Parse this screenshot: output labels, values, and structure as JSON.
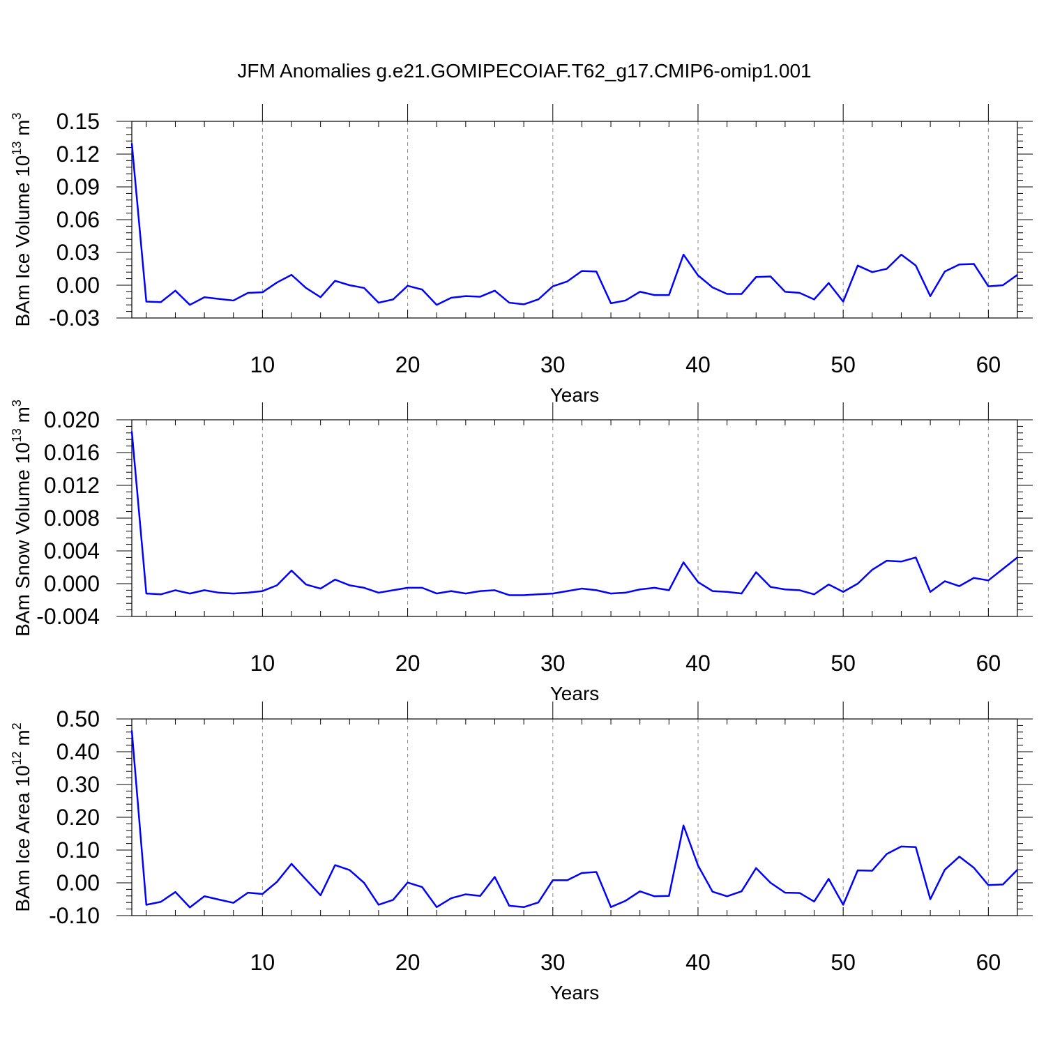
{
  "figure": {
    "title": "JFM Anomalies g.e21.GOMIPECOIAF.T62_g17.CMIP6-omip1.001"
  },
  "colors": {
    "series": "#0000ff",
    "axis": "#000000",
    "grid": "#888888",
    "background": "#ffffff"
  },
  "chart_data": [
    {
      "type": "line",
      "ylabel_main": "BAm Ice Volume 10",
      "ylabel_exp": "13",
      "ylabel_unit": " m",
      "ylabel_unit_exp": "3",
      "xlabel": "Years",
      "xlim": [
        1,
        62
      ],
      "ylim": [
        -0.03,
        0.15
      ],
      "yticks": [
        -0.03,
        0.0,
        0.03,
        0.06,
        0.09,
        0.12,
        0.15
      ],
      "ytick_labels": [
        "-0.03",
        "0.00",
        "0.03",
        "0.06",
        "0.09",
        "0.12",
        "0.15"
      ],
      "xticks": [
        10,
        20,
        30,
        40,
        50,
        60
      ],
      "xtick_labels": [
        "10",
        "20",
        "30",
        "40",
        "50",
        "60"
      ],
      "grid": "vertical dashed at major x ticks",
      "values": [
        0.13,
        -0.015,
        -0.0155,
        -0.005,
        -0.018,
        -0.011,
        -0.0125,
        -0.014,
        -0.007,
        -0.0065,
        0.0025,
        0.0095,
        -0.0025,
        -0.011,
        0.004,
        0.0,
        -0.0025,
        -0.016,
        -0.013,
        -0.0005,
        -0.004,
        -0.018,
        -0.0115,
        -0.01,
        -0.0105,
        -0.005,
        -0.016,
        -0.0175,
        -0.013,
        -0.001,
        0.0035,
        0.013,
        0.0125,
        -0.0165,
        -0.014,
        -0.006,
        -0.009,
        -0.009,
        0.028,
        0.009,
        -0.002,
        -0.008,
        -0.008,
        0.0075,
        0.008,
        -0.006,
        -0.007,
        -0.013,
        0.002,
        -0.015,
        0.018,
        0.012,
        0.015,
        0.028,
        0.018,
        -0.01,
        0.0125,
        0.019,
        0.0195,
        -0.001,
        0.0,
        0.0095
      ]
    },
    {
      "type": "line",
      "ylabel_main": "BAm Snow Volume 10",
      "ylabel_exp": "13",
      "ylabel_unit": " m",
      "ylabel_unit_exp": "3",
      "xlabel": "Years",
      "xlim": [
        1,
        62
      ],
      "ylim": [
        -0.004,
        0.02
      ],
      "yticks": [
        -0.004,
        0.0,
        0.004,
        0.008,
        0.012,
        0.016,
        0.02
      ],
      "ytick_labels": [
        "-0.004",
        "0.000",
        "0.004",
        "0.008",
        "0.012",
        "0.016",
        "0.020"
      ],
      "xticks": [
        10,
        20,
        30,
        40,
        50,
        60
      ],
      "xtick_labels": [
        "10",
        "20",
        "30",
        "40",
        "50",
        "60"
      ],
      "grid": "vertical dashed at major x ticks",
      "values": [
        0.0186,
        -0.0012,
        -0.0013,
        -0.0008,
        -0.0012,
        -0.0008,
        -0.0011,
        -0.0012,
        -0.0011,
        -0.0009,
        -0.0002,
        0.0016,
        -0.0001,
        -0.0006,
        0.0005,
        -0.0002,
        -0.0005,
        -0.0011,
        -0.0008,
        -0.0005,
        -0.0005,
        -0.0012,
        -0.0009,
        -0.0012,
        -0.0009,
        -0.0008,
        -0.0014,
        -0.0014,
        -0.0013,
        -0.0012,
        -0.0009,
        -0.0006,
        -0.0008,
        -0.0012,
        -0.0011,
        -0.0007,
        -0.0005,
        -0.0008,
        0.0026,
        0.0002,
        -0.0009,
        -0.001,
        -0.0012,
        0.0014,
        -0.0004,
        -0.0007,
        -0.0008,
        -0.0013,
        -0.0001,
        -0.001,
        0.0,
        0.0017,
        0.0028,
        0.0027,
        0.0032,
        -0.001,
        0.0003,
        -0.0003,
        0.0007,
        0.0004,
        0.0018,
        0.0032
      ]
    },
    {
      "type": "line",
      "ylabel_main": "BAm Ice Area 10",
      "ylabel_exp": "12",
      "ylabel_unit": " m",
      "ylabel_unit_exp": "2",
      "xlabel": "Years",
      "xlim": [
        1,
        62
      ],
      "ylim": [
        -0.1,
        0.5
      ],
      "yticks": [
        -0.1,
        0.0,
        0.1,
        0.2,
        0.3,
        0.4,
        0.5
      ],
      "ytick_labels": [
        "-0.10",
        "0.00",
        "0.10",
        "0.20",
        "0.30",
        "0.40",
        "0.50"
      ],
      "xticks": [
        10,
        20,
        30,
        40,
        50,
        60
      ],
      "xtick_labels": [
        "10",
        "20",
        "30",
        "40",
        "50",
        "60"
      ],
      "grid": "vertical dashed at major x ticks",
      "values": [
        0.465,
        -0.067,
        -0.058,
        -0.028,
        -0.075,
        -0.041,
        -0.051,
        -0.061,
        -0.03,
        -0.034,
        0.003,
        0.058,
        0.01,
        -0.038,
        0.054,
        0.039,
        0.0,
        -0.067,
        -0.052,
        0.001,
        -0.013,
        -0.074,
        -0.047,
        -0.035,
        -0.04,
        0.018,
        -0.07,
        -0.074,
        -0.06,
        0.008,
        0.008,
        0.03,
        0.033,
        -0.074,
        -0.055,
        -0.026,
        -0.041,
        -0.04,
        0.175,
        0.053,
        -0.027,
        -0.041,
        -0.026,
        0.045,
        0.0,
        -0.03,
        -0.031,
        -0.057,
        0.012,
        -0.067,
        0.038,
        0.037,
        0.088,
        0.111,
        0.109,
        -0.05,
        0.04,
        0.08,
        0.046,
        -0.007,
        -0.005,
        0.04
      ]
    }
  ]
}
